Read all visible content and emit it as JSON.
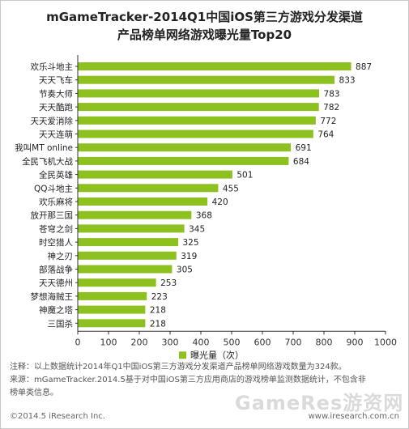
{
  "title_line1": "mGameTracker-2014Q1中国iOS第三方游戏分发渠道",
  "title_line2": "产品榜单网络游戏曝光量Top20",
  "chart_data": {
    "type": "bar",
    "orientation": "horizontal",
    "categories": [
      "欢乐斗地主",
      "天天飞车",
      "节奏大师",
      "天天酷跑",
      "天天爱消除",
      "天天连萌",
      "我叫MT online",
      "全民飞机大战",
      "全民英雄",
      "QQ斗地主",
      "欢乐麻将",
      "放开那三国",
      "苍穹之剑",
      "时空猎人",
      "神之刃",
      "部落战争",
      "天天德州",
      "梦想海贼王",
      "神魔之塔",
      "三国杀"
    ],
    "series": [
      {
        "name": "曝光量（次）",
        "values": [
          887,
          833,
          783,
          782,
          772,
          764,
          691,
          684,
          501,
          455,
          420,
          368,
          345,
          325,
          319,
          305,
          253,
          223,
          218,
          218
        ]
      }
    ],
    "xlim": [
      0,
      1000
    ],
    "x_ticks": [
      "0",
      "100",
      "200",
      "300",
      "400",
      "500",
      "600",
      "700",
      "800",
      "900",
      "1000"
    ],
    "bar_color": "#8cc11f",
    "legend_position": "bottom"
  },
  "notes": {
    "line1": "注释：以上数据统计2014年Q1中国iOS第三方游戏分发渠道产品榜单网络游戏数量为324款。",
    "line2": "来源：mGameTracker.2014.5基于对中国iOS第三方应用商店的游戏榜单监测数据统计，不包含非",
    "line3": "榜单类信息。"
  },
  "footer": {
    "copyright": "©2014.5 iResearch Inc.",
    "website": "www.iresearch.com.cn"
  },
  "watermark": "GameRes游资网"
}
